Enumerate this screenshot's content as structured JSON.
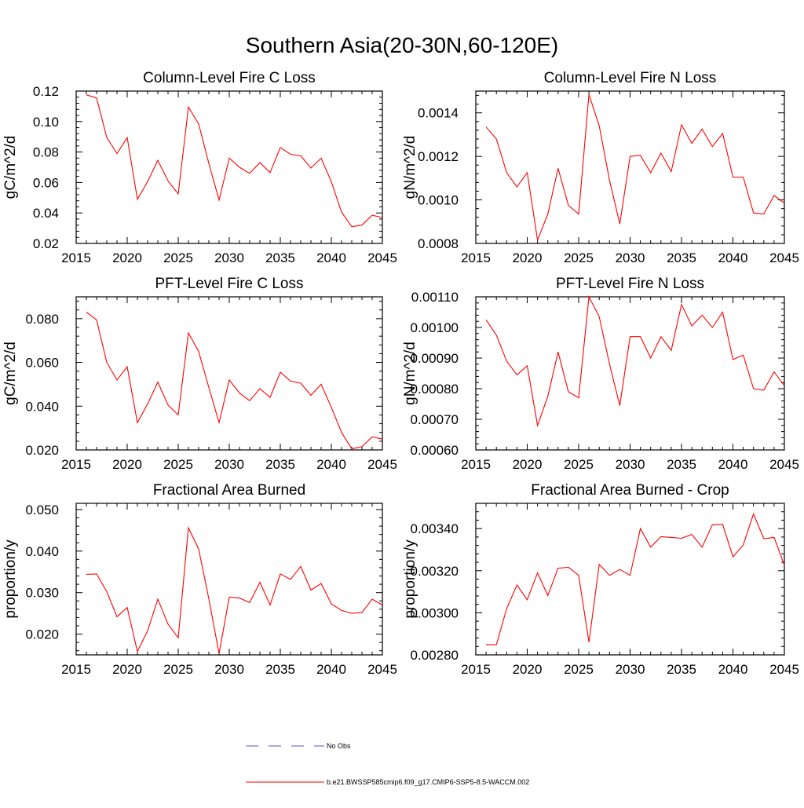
{
  "figure_title": "Southern Asia(20-30N,60-120E)",
  "colors": {
    "series": "#ff0000",
    "obs": "#4a5bd4",
    "axes": "#000000"
  },
  "legend": {
    "items": [
      {
        "label": "No Obs",
        "style": "dashed",
        "color": "#4a5bd4"
      },
      {
        "label": "b.e21.BWSSP585cmip6.f09_g17.CMIP6-SSP5-8.5-WACCM.002",
        "style": "solid",
        "color": "#ff0000"
      }
    ]
  },
  "chart_data": [
    {
      "type": "line",
      "title": "Column-Level Fire C Loss",
      "ylabel": "gC/m^2/d",
      "xlim": [
        2015,
        2045
      ],
      "ylim": [
        0.02,
        0.12
      ],
      "xticks": [
        "2015",
        "2020",
        "2025",
        "2030",
        "2035",
        "2040",
        "2045"
      ],
      "yticks": [
        "0.02",
        "0.04",
        "0.06",
        "0.08",
        "0.10",
        "0.12"
      ],
      "x": [
        2016,
        2017,
        2018,
        2019,
        2020,
        2021,
        2022,
        2023,
        2024,
        2025,
        2026,
        2027,
        2028,
        2029,
        2030,
        2031,
        2032,
        2033,
        2034,
        2035,
        2036,
        2037,
        2038,
        2039,
        2040,
        2041,
        2042,
        2043,
        2044,
        2045
      ],
      "series": [
        {
          "values": [
            0.1175,
            0.1155,
            0.0895,
            0.079,
            0.0895,
            0.049,
            0.0605,
            0.0745,
            0.061,
            0.0525,
            0.1095,
            0.0985,
            0.0725,
            0.0485,
            0.076,
            0.07,
            0.066,
            0.073,
            0.0665,
            0.083,
            0.0785,
            0.0775,
            0.0695,
            0.076,
            0.0605,
            0.0405,
            0.031,
            0.032,
            0.0385,
            0.037
          ]
        }
      ]
    },
    {
      "type": "line",
      "title": "Column-Level Fire N Loss",
      "ylabel": "gN/m^2/d",
      "xlim": [
        2015,
        2045
      ],
      "ylim": [
        0.0008,
        0.0015
      ],
      "xticks": [
        "2015",
        "2020",
        "2025",
        "2030",
        "2035",
        "2040",
        "2045"
      ],
      "yticks": [
        "0.0008",
        "0.0010",
        "0.0012",
        "0.0014"
      ],
      "x": [
        2016,
        2017,
        2018,
        2019,
        2020,
        2021,
        2022,
        2023,
        2024,
        2025,
        2026,
        2027,
        2028,
        2029,
        2030,
        2031,
        2032,
        2033,
        2034,
        2035,
        2036,
        2037,
        2038,
        2039,
        2040,
        2041,
        2042,
        2043,
        2044,
        2045
      ],
      "series": [
        {
          "values": [
            0.001335,
            0.00128,
            0.001125,
            0.00106,
            0.001125,
            0.000815,
            0.000935,
            0.001145,
            0.000975,
            0.000935,
            0.001485,
            0.00134,
            0.00109,
            0.00089,
            0.0012,
            0.001205,
            0.001125,
            0.001215,
            0.00113,
            0.001345,
            0.00126,
            0.001325,
            0.001245,
            0.001305,
            0.001105,
            0.001105,
            0.00094,
            0.000935,
            0.00102,
            0.000985
          ]
        }
      ]
    },
    {
      "type": "line",
      "title": "PFT-Level Fire C Loss",
      "ylabel": "gC/m^2/d",
      "xlim": [
        2015,
        2045
      ],
      "ylim": [
        0.02,
        0.09
      ],
      "xticks": [
        "2015",
        "2020",
        "2025",
        "2030",
        "2035",
        "2040",
        "2045"
      ],
      "yticks": [
        "0.020",
        "0.040",
        "0.060",
        "0.080"
      ],
      "x": [
        2016,
        2017,
        2018,
        2019,
        2020,
        2021,
        2022,
        2023,
        2024,
        2025,
        2026,
        2027,
        2028,
        2029,
        2030,
        2031,
        2032,
        2033,
        2034,
        2035,
        2036,
        2037,
        2038,
        2039,
        2040,
        2041,
        2042,
        2043,
        2044,
        2045
      ],
      "series": [
        {
          "values": [
            0.083,
            0.0795,
            0.06,
            0.052,
            0.058,
            0.0325,
            0.041,
            0.051,
            0.0405,
            0.036,
            0.0735,
            0.065,
            0.0485,
            0.0325,
            0.052,
            0.046,
            0.0425,
            0.048,
            0.044,
            0.0555,
            0.0515,
            0.0505,
            0.045,
            0.05,
            0.0395,
            0.028,
            0.0205,
            0.0215,
            0.026,
            0.025
          ]
        }
      ]
    },
    {
      "type": "line",
      "title": "PFT-Level Fire N Loss",
      "ylabel": "gN/m^2/d",
      "xlim": [
        2015,
        2045
      ],
      "ylim": [
        0.0006,
        0.0011
      ],
      "xticks": [
        "2015",
        "2020",
        "2025",
        "2030",
        "2035",
        "2040",
        "2045"
      ],
      "yticks": [
        "0.00060",
        "0.00070",
        "0.00080",
        "0.00090",
        "0.00100",
        "0.00110"
      ],
      "x": [
        2016,
        2017,
        2018,
        2019,
        2020,
        2021,
        2022,
        2023,
        2024,
        2025,
        2026,
        2027,
        2028,
        2029,
        2030,
        2031,
        2032,
        2033,
        2034,
        2035,
        2036,
        2037,
        2038,
        2039,
        2040,
        2041,
        2042,
        2043,
        2044,
        2045
      ],
      "series": [
        {
          "values": [
            0.001025,
            0.000975,
            0.00089,
            0.000845,
            0.000875,
            0.00068,
            0.000775,
            0.00092,
            0.00079,
            0.00077,
            0.0011,
            0.001035,
            0.00088,
            0.000745,
            0.00097,
            0.00097,
            0.0009,
            0.00097,
            0.000925,
            0.001075,
            0.001005,
            0.00104,
            0.001,
            0.00105,
            0.000895,
            0.00091,
            0.0008,
            0.000795,
            0.000855,
            0.00081
          ]
        }
      ]
    },
    {
      "type": "line",
      "title": "Fractional Area Burned",
      "ylabel": "proportion/y",
      "xlim": [
        2015,
        2045
      ],
      "ylim": [
        0.015,
        0.0515
      ],
      "xticks": [
        "2015",
        "2020",
        "2025",
        "2030",
        "2035",
        "2040",
        "2045"
      ],
      "yticks": [
        "0.020",
        "0.030",
        "0.040",
        "0.050"
      ],
      "x": [
        2016,
        2017,
        2018,
        2019,
        2020,
        2021,
        2022,
        2023,
        2024,
        2025,
        2026,
        2027,
        2028,
        2029,
        2030,
        2031,
        2032,
        2033,
        2034,
        2035,
        2036,
        2037,
        2038,
        2039,
        2040,
        2041,
        2042,
        2043,
        2044,
        2045
      ],
      "series": [
        {
          "values": [
            0.0344,
            0.0345,
            0.0302,
            0.0242,
            0.0264,
            0.0158,
            0.0208,
            0.0284,
            0.0224,
            0.0191,
            0.0456,
            0.0405,
            0.0285,
            0.0153,
            0.0289,
            0.0287,
            0.0276,
            0.0325,
            0.027,
            0.0345,
            0.0332,
            0.0363,
            0.0306,
            0.0322,
            0.0273,
            0.0257,
            0.025,
            0.0252,
            0.0284,
            0.027
          ]
        }
      ]
    },
    {
      "type": "line",
      "title": "Fractional Area Burned - Crop",
      "ylabel": "proportion/y",
      "xlim": [
        2015,
        2045
      ],
      "ylim": [
        0.0028,
        0.00352
      ],
      "xticks": [
        "2015",
        "2020",
        "2025",
        "2030",
        "2035",
        "2040",
        "2045"
      ],
      "yticks": [
        "0.00280",
        "0.00300",
        "0.00320",
        "0.00340"
      ],
      "x": [
        2016,
        2017,
        2018,
        2019,
        2020,
        2021,
        2022,
        2023,
        2024,
        2025,
        2026,
        2027,
        2028,
        2029,
        2030,
        2031,
        2032,
        2033,
        2034,
        2035,
        2036,
        2037,
        2038,
        2039,
        2040,
        2041,
        2042,
        2043,
        2044,
        2045
      ],
      "series": [
        {
          "values": [
            0.002848,
            0.002848,
            0.00302,
            0.003132,
            0.003062,
            0.00319,
            0.003082,
            0.003212,
            0.003216,
            0.003178,
            0.00286,
            0.00323,
            0.003178,
            0.003206,
            0.003178,
            0.0034,
            0.003312,
            0.003362,
            0.003358,
            0.003354,
            0.003372,
            0.003312,
            0.003418,
            0.00342,
            0.003266,
            0.003322,
            0.00347,
            0.003352,
            0.003358,
            0.003226
          ]
        }
      ]
    }
  ]
}
